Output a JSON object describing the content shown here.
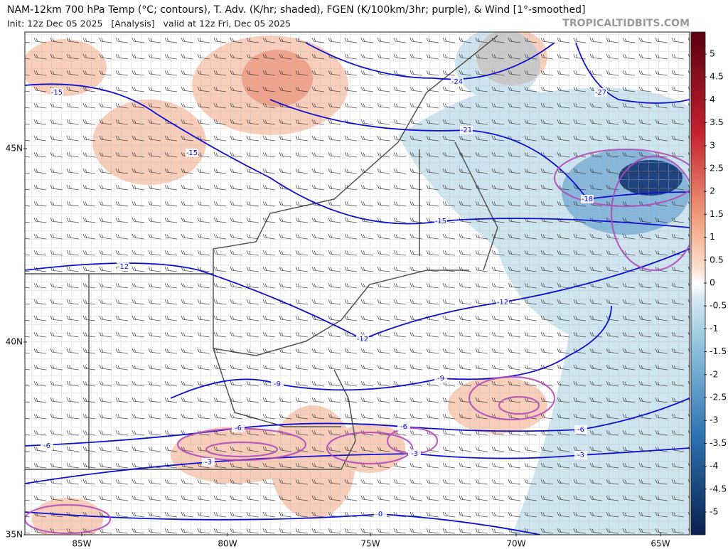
{
  "header": {
    "title": "NAM-12km 700 hPa Temp (°C; contours), T. Adv. (K/hr; shaded), FGEN (K/100km/3hr; purple), & Wind [1°-smoothed]",
    "init": "Init: 12z Dec 05 2025   [Analysis]   valid at 12z Fri, Dec 05 2025",
    "watermark": "TROPICALTIDBITS.COM"
  },
  "latitude_labels": [
    "45N",
    "40N",
    "35N"
  ],
  "longitude_labels": [
    "85W",
    "80W",
    "75W",
    "70W",
    "65W"
  ],
  "colorbar_labels": [
    "5",
    "4.5",
    "4",
    "3.5",
    "3",
    "2.5",
    "2",
    "1.5",
    "1",
    "0.5",
    "0",
    "-0.5",
    "-1",
    "-1.5",
    "-2",
    "-2.5",
    "-3",
    "-3.5",
    "-4",
    "-4.5",
    "-5"
  ],
  "contour_labels": [
    "-15",
    "-15",
    "-24",
    "-21",
    "-27",
    "-18",
    "-15",
    "-12",
    "-12",
    "-12",
    "-9",
    "-9",
    "-6",
    "-6",
    "-6",
    "-6",
    "-3",
    "-3",
    "-3",
    "0"
  ]
}
